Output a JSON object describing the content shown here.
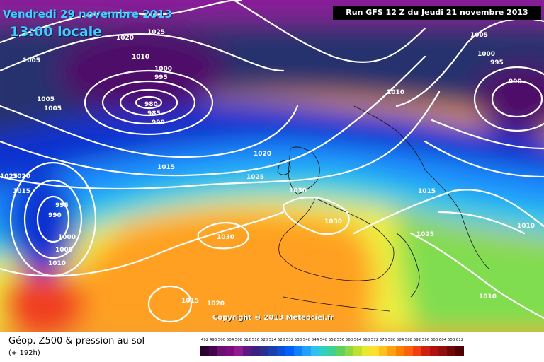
{
  "header": {
    "date": "Vendredi 29 novembre 2013",
    "time": "13:00 locale",
    "run": "Run GFS 12 Z du Jeudi 21 novembre 2013"
  },
  "copyright": "Copyright © 2013 Meteociel.fr",
  "legend": {
    "title": "Géop. Z500 & pression au sol",
    "subtitle": "(+ 192h)",
    "scale_values": [
      "492",
      "496",
      "500",
      "504",
      "508",
      "512",
      "516",
      "520",
      "524",
      "528",
      "532",
      "536",
      "540",
      "544",
      "548",
      "552",
      "556",
      "560",
      "564",
      "568",
      "572",
      "576",
      "580",
      "584",
      "588",
      "592",
      "596",
      "600",
      "604",
      "608",
      "612"
    ],
    "scale_colors": [
      "#2a0030",
      "#4a0050",
      "#6a1070",
      "#800b80",
      "#901a90",
      "#5a1a80",
      "#3a2080",
      "#2a3090",
      "#1a40b0",
      "#0a50d0",
      "#0060ff",
      "#1080ff",
      "#20a0ff",
      "#30c0f0",
      "#30d0c0",
      "#40d090",
      "#60d060",
      "#90d840",
      "#c0e030",
      "#e8e830",
      "#ffe030",
      "#ffc020",
      "#ffa010",
      "#ff8000",
      "#ff6010",
      "#f04010",
      "#d02010",
      "#b01010",
      "#901010",
      "#700808",
      "#500000"
    ]
  },
  "isobar_labels": [
    {
      "text": "1020"
    },
    {
      "text": "1025"
    },
    {
      "text": "1010"
    },
    {
      "text": "1000"
    },
    {
      "text": "995"
    },
    {
      "text": "980"
    },
    {
      "text": "985"
    },
    {
      "text": "990"
    },
    {
      "text": "1005"
    },
    {
      "text": "1005"
    },
    {
      "text": "1005"
    },
    {
      "text": "1005"
    },
    {
      "text": "1000"
    },
    {
      "text": "995"
    },
    {
      "text": "990"
    },
    {
      "text": "1010"
    },
    {
      "text": "1020"
    },
    {
      "text": "1015"
    },
    {
      "text": "1025"
    },
    {
      "text": "1030"
    },
    {
      "text": "1030"
    },
    {
      "text": "1030"
    },
    {
      "text": "1015"
    },
    {
      "text": "1025"
    },
    {
      "text": "1010"
    },
    {
      "text": "1010"
    },
    {
      "text": "1025"
    },
    {
      "text": "1020"
    },
    {
      "text": "1015"
    },
    {
      "text": "995"
    },
    {
      "text": "990"
    },
    {
      "text": "1000"
    },
    {
      "text": "1005"
    },
    {
      "text": "1010"
    },
    {
      "text": "1015"
    },
    {
      "text": "1020"
    }
  ],
  "palette": {
    "deep_low": "#500a6a",
    "purple": "#8a1a9a",
    "navy": "#26306e",
    "blue": "#1030d0",
    "sky": "#1e90ff",
    "cyan": "#30d0e0",
    "green": "#80dd50",
    "yellow": "#f0f040",
    "orange": "#ffa020",
    "red": "#f04020"
  }
}
